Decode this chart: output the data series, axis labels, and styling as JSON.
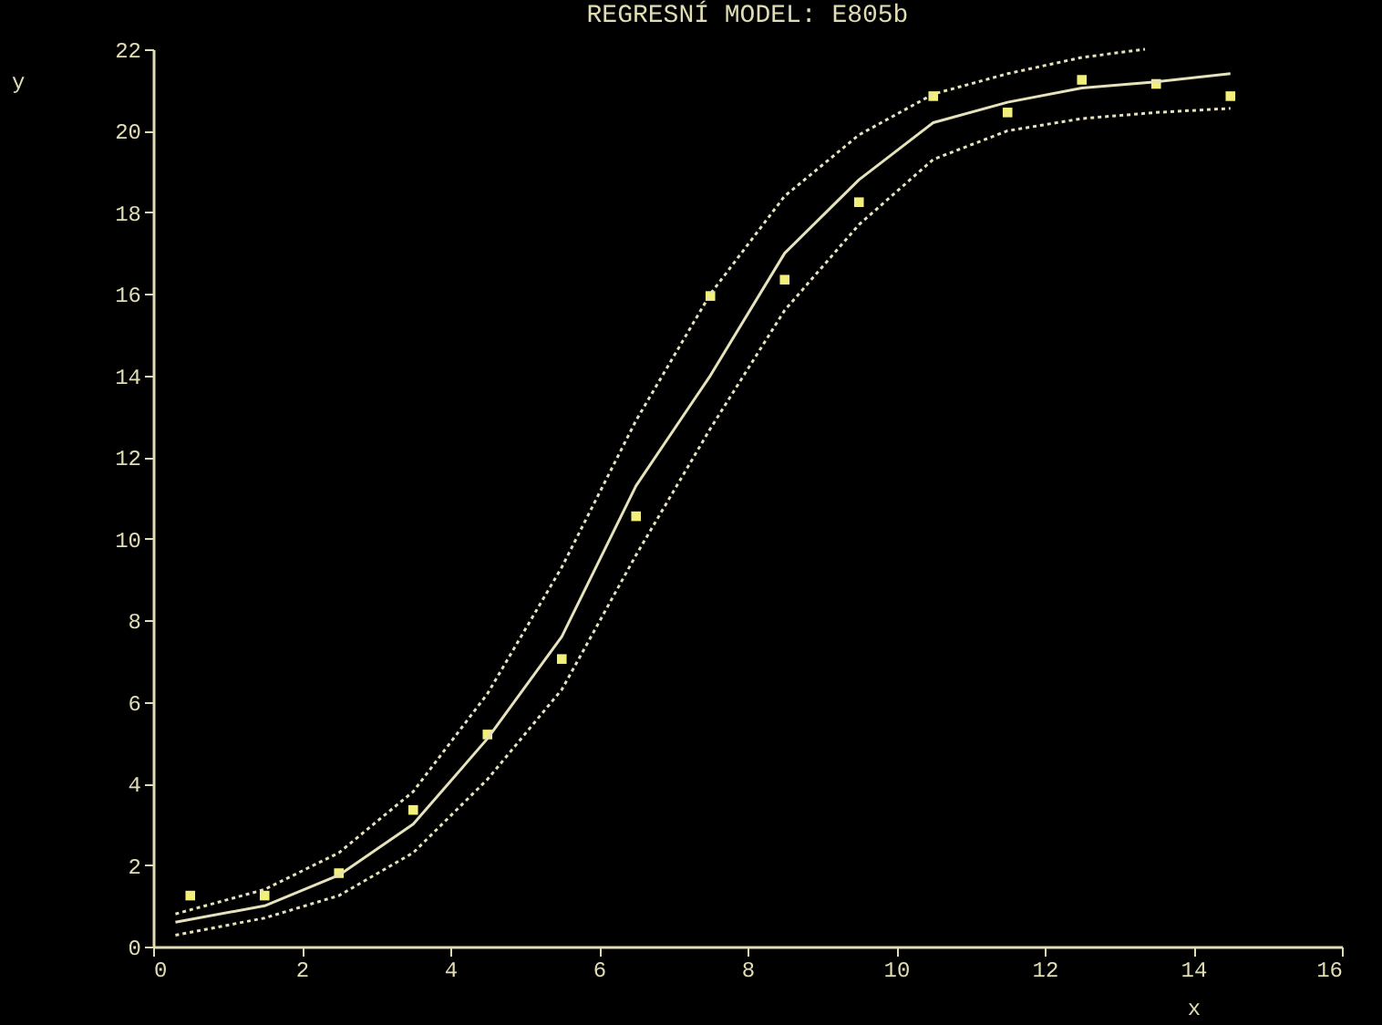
{
  "chart_data": {
    "type": "line",
    "title": "REGRESNÍ MODEL: E805b",
    "xlabel": "x",
    "ylabel": "y",
    "xlim": [
      0,
      16
    ],
    "xticks": [
      0,
      2,
      4,
      6,
      8,
      10,
      12,
      14,
      16
    ],
    "ylim": [
      0,
      22
    ],
    "yticks": [
      0,
      2,
      4,
      6,
      8,
      10,
      12,
      14,
      16,
      18,
      20,
      22
    ],
    "series": [
      {
        "type": "scatter",
        "marker": "square",
        "color": "#f2f07a",
        "x": [
          0.5,
          1.5,
          2.5,
          3.5,
          4.5,
          5.5,
          6.5,
          7.5,
          8.5,
          9.5,
          10.5,
          11.5,
          12.5,
          13.5,
          14.5
        ],
        "values": [
          1.25,
          1.25,
          1.8,
          3.35,
          5.2,
          7.05,
          10.55,
          15.95,
          16.35,
          18.25,
          20.85,
          20.45,
          21.25,
          21.15,
          20.85
        ]
      },
      {
        "line_style": "solid",
        "color": "#e6e2bc",
        "x": [
          0.3,
          1.5,
          2.5,
          3.5,
          4.5,
          5.5,
          6.5,
          7.5,
          8.5,
          9.5,
          10.5,
          11.5,
          12.5,
          13.5,
          14.5
        ],
        "values": [
          0.6,
          1.0,
          1.75,
          3.0,
          5.1,
          7.6,
          11.3,
          14.0,
          17.0,
          18.8,
          20.2,
          20.7,
          21.05,
          21.2,
          21.4
        ]
      },
      {
        "type": "line",
        "line_style": "dotted",
        "color": "#e6e2bc",
        "x": [
          0.3,
          1.5,
          2.5,
          3.5,
          4.5,
          5.5,
          6.5,
          7.5,
          8.5,
          9.5,
          10.5,
          11.5,
          12.5,
          13.35
        ],
        "values": [
          0.8,
          1.4,
          2.3,
          3.8,
          6.2,
          9.3,
          12.9,
          16.0,
          18.4,
          19.9,
          20.9,
          21.4,
          21.8,
          22.0
        ]
      },
      {
        "type": "line",
        "line_style": "dotted",
        "color": "#e6e2bc",
        "x": [
          0.3,
          1.5,
          2.5,
          3.5,
          4.5,
          5.5,
          6.5,
          7.5,
          8.5,
          9.5,
          10.5,
          11.5,
          12.5,
          13.5,
          14.5
        ],
        "values": [
          0.28,
          0.7,
          1.25,
          2.3,
          4.1,
          6.3,
          9.6,
          12.7,
          15.6,
          17.7,
          19.3,
          20.0,
          20.3,
          20.45,
          20.55
        ]
      }
    ]
  }
}
